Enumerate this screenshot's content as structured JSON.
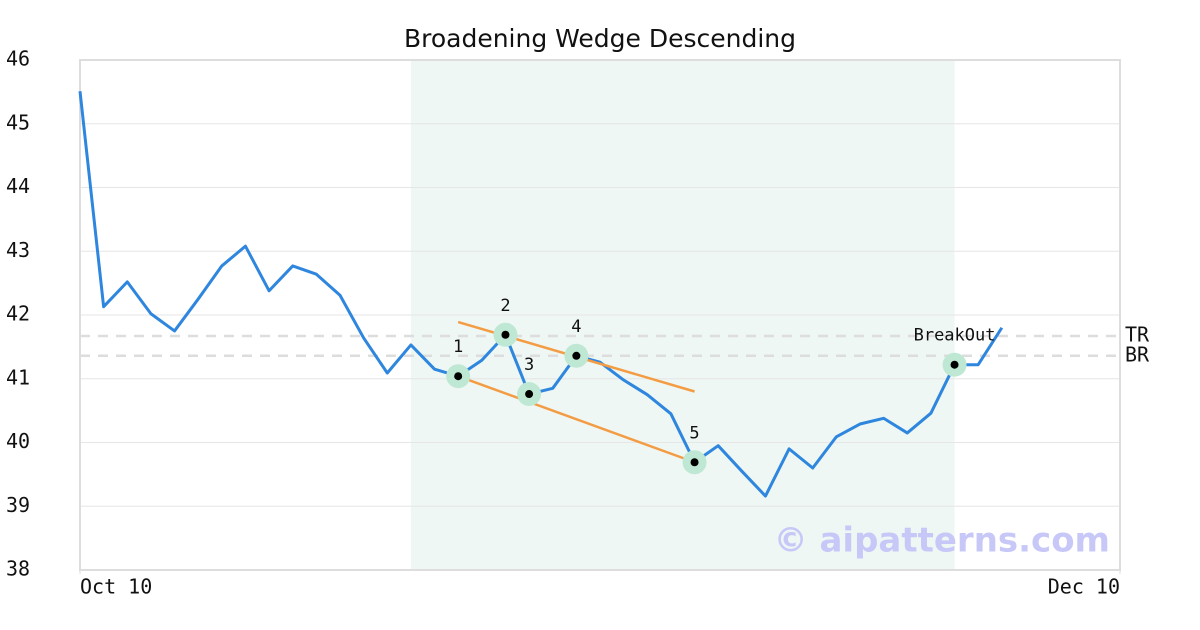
{
  "chart_data": {
    "type": "line",
    "title": "Broadening Wedge Descending",
    "xlim": [
      0,
      44
    ],
    "xticks": [
      {
        "value": 0,
        "label": "Oct 10"
      },
      {
        "value": 44,
        "label": "Dec 10"
      }
    ],
    "ylim": [
      38,
      46
    ],
    "yticks": [
      38,
      39,
      40,
      41,
      42,
      43,
      44,
      45,
      46
    ],
    "grid": true,
    "color": "#2e86de",
    "x": [
      0,
      1,
      2,
      3,
      4,
      5,
      6,
      7,
      8,
      9,
      10,
      11,
      12,
      13,
      14,
      15,
      16,
      17,
      18,
      19,
      20,
      21,
      22,
      23,
      24,
      25,
      26,
      27,
      28,
      29,
      30,
      31,
      32,
      33,
      34,
      35,
      36,
      37,
      38,
      39
    ],
    "values": [
      45.51,
      42.13,
      42.52,
      42.02,
      41.75,
      42.25,
      42.77,
      43.08,
      42.38,
      42.77,
      42.64,
      42.31,
      41.64,
      41.09,
      41.53,
      41.15,
      41.04,
      41.29,
      41.69,
      40.76,
      40.85,
      41.36,
      41.26,
      40.98,
      40.75,
      40.45,
      39.69,
      39.95,
      39.55,
      39.16,
      39.9,
      39.6,
      40.09,
      40.29,
      40.38,
      40.15,
      40.46,
      41.22,
      41.22,
      41.8
    ],
    "highlight": {
      "x": [
        14,
        37
      ],
      "color": "#eef7f3"
    },
    "hlines": [
      {
        "label": "TR",
        "value": 41.67
      },
      {
        "label": "BR",
        "value": 41.36
      }
    ],
    "trendlines": [
      {
        "color": "#f39c44",
        "x": [
          16,
          26
        ],
        "values": [
          41.89,
          40.8
        ]
      },
      {
        "color": "#f39c44",
        "x": [
          16,
          26
        ],
        "values": [
          41.04,
          39.69
        ]
      }
    ],
    "points": [
      {
        "label": "1",
        "x": 16,
        "value": 41.04
      },
      {
        "label": "2",
        "x": 18,
        "value": 41.69
      },
      {
        "label": "3",
        "x": 19,
        "value": 40.76
      },
      {
        "label": "4",
        "x": 21,
        "value": 41.36
      },
      {
        "label": "5",
        "x": 26,
        "value": 39.69
      },
      {
        "label": "BreakOut",
        "x": 37,
        "value": 41.22
      }
    ],
    "watermark": "© aipatterns.com"
  }
}
